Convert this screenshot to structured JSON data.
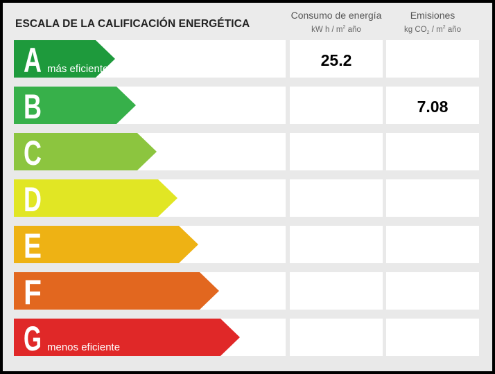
{
  "header": {
    "title": "ESCALA DE LA CALIFICACIÓN ENERGÉTICA",
    "consumo_label": "Consumo de energía",
    "consumo_unit_pre": "kW h / m",
    "consumo_unit_sup": "2",
    "consumo_unit_post": " año",
    "emis_label": "Emisiones",
    "emis_unit_pre": "kg CO",
    "emis_unit_sub": "2",
    "emis_unit_mid": " / m",
    "emis_unit_sup": "2",
    "emis_unit_post": " año"
  },
  "chart_data": {
    "type": "table",
    "classes": [
      {
        "letter": "A",
        "caption": "más eficiente",
        "color": "#1e9a3c"
      },
      {
        "letter": "B",
        "caption": "",
        "color": "#37b04a"
      },
      {
        "letter": "C",
        "caption": "",
        "color": "#8cc53f"
      },
      {
        "letter": "D",
        "caption": "",
        "color": "#e1e624"
      },
      {
        "letter": "E",
        "caption": "",
        "color": "#eeb214"
      },
      {
        "letter": "F",
        "caption": "",
        "color": "#e2671f"
      },
      {
        "letter": "G",
        "caption": "menos eficiente",
        "color": "#e02828"
      }
    ],
    "consumo": {
      "class": "A",
      "value": "25.2"
    },
    "emisiones": {
      "class": "B",
      "value": "7.08"
    }
  }
}
